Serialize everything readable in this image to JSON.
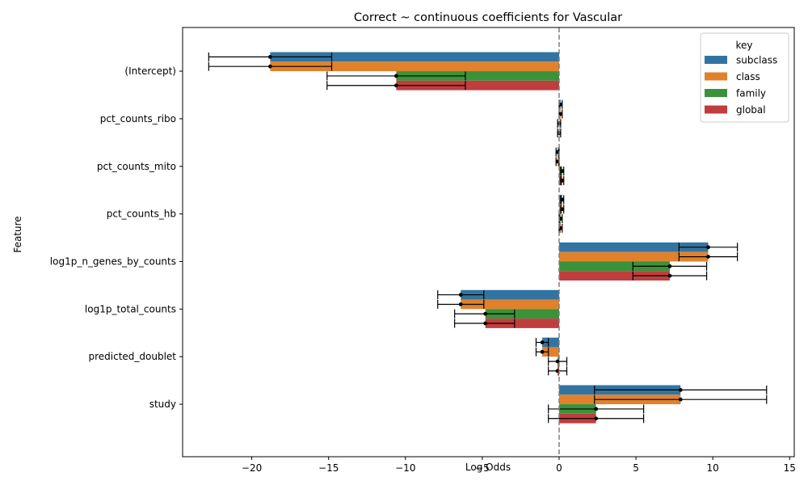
{
  "chart_data": {
    "type": "bar",
    "orientation": "horizontal",
    "title": "Correct ~ continuous coefficients for Vascular",
    "xlabel": "Log Odds",
    "ylabel": "Feature",
    "xlim": [
      -24.5,
      15.3
    ],
    "xticks": [
      -20,
      -15,
      -10,
      -5,
      0,
      5,
      10,
      15
    ],
    "xtick_labels": [
      "−20",
      "−15",
      "−10",
      "−5",
      "0",
      "5",
      "10",
      "15"
    ],
    "reference_line": 0,
    "categories": [
      "(Intercept)",
      "pct_counts_ribo",
      "pct_counts_mito",
      "pct_counts_hb",
      "log1p_n_genes_by_counts",
      "log1p_total_counts",
      "predicted_doublet",
      "study"
    ],
    "legend": {
      "title": "key",
      "position": "top-right"
    },
    "series": [
      {
        "name": "subclass",
        "color": "#3274a1",
        "values": [
          -18.8,
          0.1,
          -0.1,
          0.2,
          9.7,
          -6.4,
          -1.1,
          7.9
        ],
        "err_low": [
          -22.8,
          0.0,
          -0.2,
          0.1,
          7.8,
          -7.9,
          -1.5,
          2.3
        ],
        "err_high": [
          -14.8,
          0.2,
          0.0,
          0.3,
          11.6,
          -4.9,
          -0.7,
          13.5
        ]
      },
      {
        "name": "class",
        "color": "#e1812c",
        "values": [
          -18.8,
          0.1,
          -0.1,
          0.2,
          9.7,
          -6.4,
          -1.1,
          7.9
        ],
        "err_low": [
          -22.8,
          0.0,
          -0.2,
          0.1,
          7.8,
          -7.9,
          -1.5,
          2.3
        ],
        "err_high": [
          -14.8,
          0.2,
          0.0,
          0.3,
          11.6,
          -4.9,
          -0.7,
          13.5
        ]
      },
      {
        "name": "family",
        "color": "#3a923a",
        "values": [
          -10.6,
          0.0,
          0.2,
          0.1,
          7.2,
          -4.8,
          -0.1,
          2.4
        ],
        "err_low": [
          -15.1,
          -0.1,
          0.1,
          0.0,
          4.8,
          -6.8,
          -0.7,
          -0.7
        ],
        "err_high": [
          -6.1,
          0.1,
          0.3,
          0.2,
          9.6,
          -2.9,
          0.5,
          5.5
        ]
      },
      {
        "name": "global",
        "color": "#c03d3e",
        "values": [
          -10.6,
          0.0,
          0.2,
          0.1,
          7.2,
          -4.8,
          -0.1,
          2.4
        ],
        "err_low": [
          -15.1,
          -0.1,
          0.1,
          0.0,
          4.8,
          -6.8,
          -0.7,
          -0.7
        ],
        "err_high": [
          -6.1,
          0.1,
          0.3,
          0.2,
          9.6,
          -2.9,
          0.5,
          5.5
        ]
      }
    ]
  }
}
